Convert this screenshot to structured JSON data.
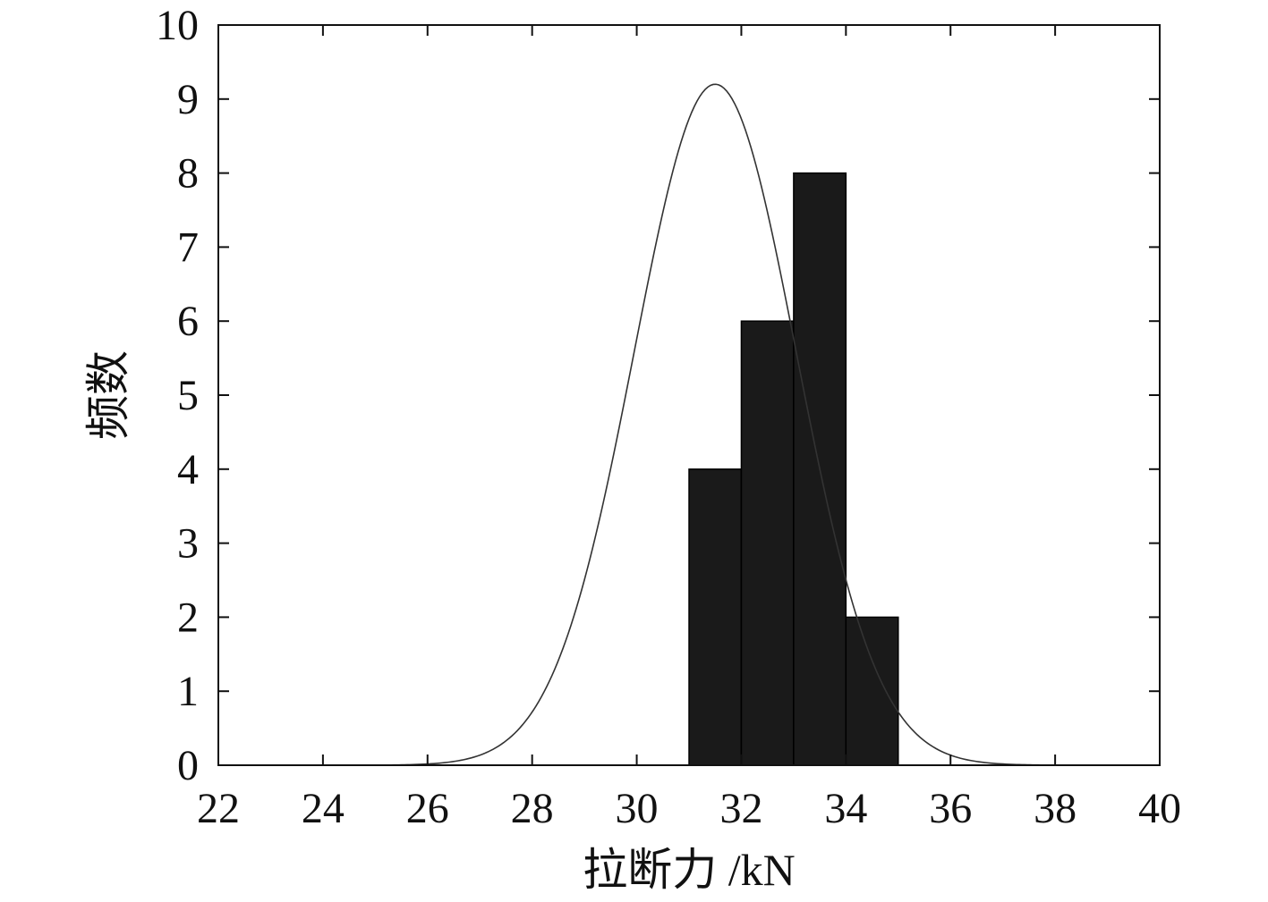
{
  "chart_data": {
    "type": "bar",
    "title": "",
    "xlabel": "拉断力 /kN",
    "ylabel": "频数",
    "xlim": [
      22,
      40
    ],
    "ylim": [
      0,
      10
    ],
    "x_ticks": [
      "22",
      "24",
      "26",
      "28",
      "30",
      "32",
      "34",
      "36",
      "38",
      "40"
    ],
    "y_ticks": [
      "0",
      "1",
      "2",
      "3",
      "4",
      "5",
      "6",
      "7",
      "8",
      "9",
      "10"
    ],
    "grid": false,
    "legend": "none",
    "bars": [
      {
        "x_start": 31,
        "x_end": 32,
        "value": 4
      },
      {
        "x_start": 32,
        "x_end": 33,
        "value": 6
      },
      {
        "x_start": 33,
        "x_end": 34,
        "value": 8
      },
      {
        "x_start": 34,
        "x_end": 35,
        "value": 2
      }
    ],
    "fit_curve": {
      "type": "normal",
      "mean": 31.5,
      "std": 1.55,
      "peak": 9.2,
      "x_range": [
        23.3,
        38.7
      ]
    },
    "colors": {
      "bar_fill": "#1a1a1a",
      "bar_edge": "#000000",
      "curve": "#333333",
      "axis": "#111111"
    }
  }
}
